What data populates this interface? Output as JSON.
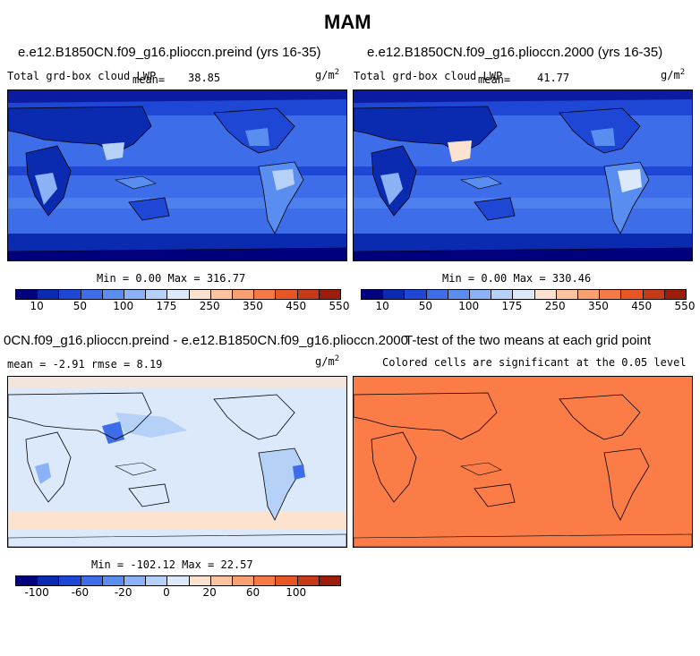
{
  "figure": {
    "title": "MAM"
  },
  "panels": [
    {
      "title": "e.e12.B1850CN.f09_g16.plioccn.preind (yrs 16-35)",
      "variable": "Total grd-box cloud LWP",
      "stat_label": "mean=",
      "stat_value": "38.85",
      "units": "g/m",
      "units_exp": "2",
      "minmax": "Min =    0.00 Max = 316.77"
    },
    {
      "title": "e.e12.B1850CN.f09_g16.plioccn.2000 (yrs 16-35)",
      "variable": "Total grd-box cloud LWP",
      "stat_label": "mean=",
      "stat_value": "41.77",
      "units": "g/m",
      "units_exp": "2",
      "minmax": "Min =    0.00 Max = 330.46"
    },
    {
      "title": "0CN.f09_g16.plioccn.preind - e.e12.B1850CN.f09_g16.plioccn.2000",
      "stat_text": "mean =   -2.91    rmse =   8.19",
      "units": "g/m",
      "units_exp": "2",
      "minmax": "Min = -102.12 Max =  22.57"
    },
    {
      "title": "T-test of the two means at each grid point",
      "subtitle": "Colored cells are significant at the 0.05 level"
    }
  ],
  "colorbars": {
    "lwp": {
      "colors": [
        "#00007f",
        "#0a2bb0",
        "#1f47d6",
        "#3d6de8",
        "#5a8df0",
        "#8ab2f5",
        "#b5d1f8",
        "#dbe9fb",
        "#fde2cf",
        "#fcc3a0",
        "#f9a070",
        "#f57a46",
        "#e85626",
        "#c63a17",
        "#9b1d0c"
      ],
      "labels": [
        "10",
        "50",
        "100",
        "175",
        "250",
        "350",
        "450",
        "550"
      ]
    },
    "diff": {
      "colors": [
        "#00007f",
        "#0a2bb0",
        "#1f47d6",
        "#3d6de8",
        "#5a8df0",
        "#8ab2f5",
        "#b5d1f8",
        "#dbe9fb",
        "#fde2cf",
        "#fcc3a0",
        "#f9a070",
        "#f57a46",
        "#e85626",
        "#c63a17",
        "#9b1d0c"
      ],
      "labels": [
        "-100",
        "-60",
        "-20",
        "0",
        "20",
        "60",
        "100"
      ]
    }
  }
}
